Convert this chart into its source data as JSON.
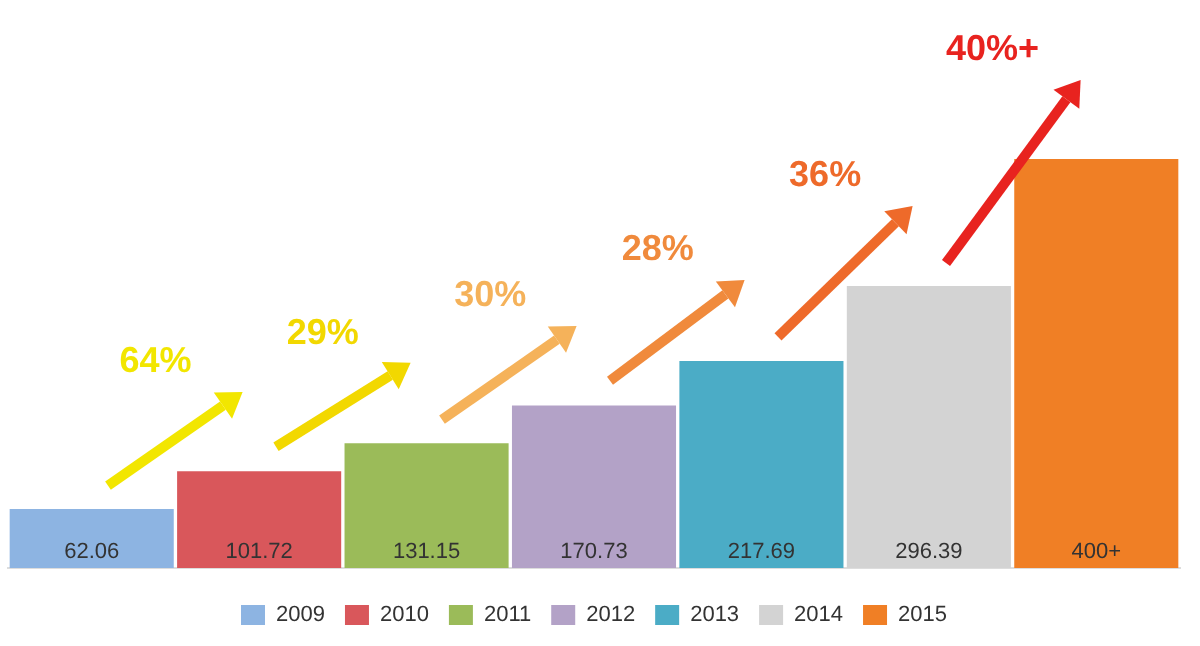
{
  "chart_data": {
    "type": "bar",
    "categories": [
      null,
      null,
      null,
      null,
      null,
      null,
      null
    ],
    "series": [
      {
        "name": "2009",
        "color": "#8db4e2",
        "values": [
          62.06,
          null,
          null,
          null,
          null,
          null,
          null
        ],
        "value_labels": [
          "62.06",
          null,
          null,
          null,
          null,
          null,
          null
        ]
      },
      {
        "name": "2010",
        "color": "#d9575b",
        "values": [
          null,
          101.72,
          null,
          null,
          null,
          null,
          null
        ],
        "value_labels": [
          null,
          "101.72",
          null,
          null,
          null,
          null,
          null
        ]
      },
      {
        "name": "2011",
        "color": "#9bbb59",
        "values": [
          null,
          null,
          131.15,
          null,
          null,
          null,
          null
        ],
        "value_labels": [
          null,
          null,
          "131.15",
          null,
          null,
          null,
          null
        ]
      },
      {
        "name": "2012",
        "color": "#b3a2c7",
        "values": [
          null,
          null,
          null,
          170.73,
          null,
          null,
          null
        ],
        "value_labels": [
          null,
          null,
          null,
          "170.73",
          null,
          null,
          null
        ]
      },
      {
        "name": "2013",
        "color": "#4bacc6",
        "values": [
          null,
          null,
          null,
          null,
          217.69,
          null,
          null
        ],
        "value_labels": [
          null,
          null,
          null,
          null,
          "217.69",
          null,
          null
        ]
      },
      {
        "name": "2014",
        "color": "#d3d3d3",
        "values": [
          null,
          null,
          null,
          null,
          null,
          296.39,
          null
        ],
        "value_labels": [
          null,
          null,
          null,
          null,
          null,
          "296.39",
          null
        ]
      },
      {
        "name": "2015",
        "color": "#f07f25",
        "values": [
          null,
          null,
          null,
          null,
          null,
          null,
          430
        ],
        "value_labels": [
          null,
          null,
          null,
          null,
          null,
          null,
          "400+"
        ]
      }
    ],
    "annotations": [
      "64%",
      "29%",
      "30%",
      "28%",
      "36%",
      "40%+"
    ],
    "stacked": true,
    "legend": "bottom",
    "grid": false,
    "tick_labels": false
  }
}
